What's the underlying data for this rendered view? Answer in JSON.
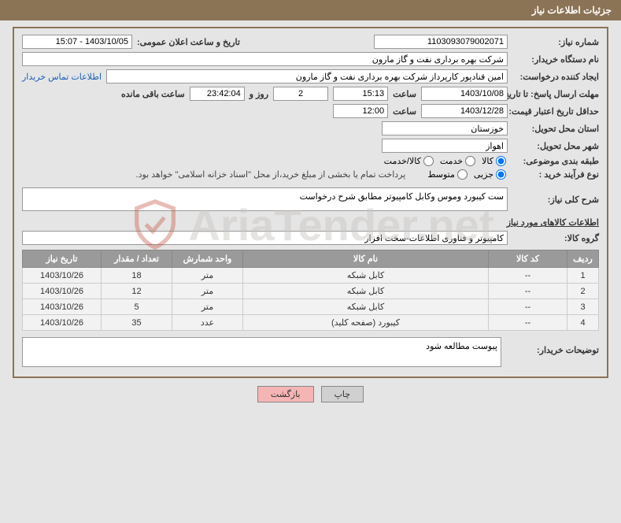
{
  "header": {
    "title": "جزئیات اطلاعات نیاز"
  },
  "fields": {
    "need_number_label": "شماره نیاز:",
    "need_number": "1103093079002071",
    "announce_label": "تاریخ و ساعت اعلان عمومی:",
    "announce_value": "1403/10/05 - 15:07",
    "buyer_org_label": "نام دستگاه خریدار:",
    "buyer_org": "شرکت بهره برداری نفت و گاز مارون",
    "requester_label": "ایجاد کننده درخواست:",
    "requester": "امین قنادپور کارپرداز شرکت بهره برداری نفت و گاز مارون",
    "buyer_contact_link": "اطلاعات تماس خریدار",
    "reply_deadline_label": "مهلت ارسال پاسخ: تا تاریخ:",
    "reply_date": "1403/10/08",
    "time_label": "ساعت",
    "reply_time": "15:13",
    "days_count": "2",
    "days_and": "روز و",
    "countdown": "23:42:04",
    "remaining_label": "ساعت باقی مانده",
    "price_valid_label": "حداقل تاریخ اعتبار قیمت: تا تاریخ:",
    "price_valid_date": "1403/12/28",
    "price_valid_time": "12:00",
    "province_label": "استان محل تحویل:",
    "province": "خوزستان",
    "city_label": "شهر محل تحویل:",
    "city": "اهواز",
    "category_label": "طبقه بندی موضوعی:",
    "radio_goods": "کالا",
    "radio_service": "خدمت",
    "radio_goods_service": "کالا/خدمت",
    "process_label": "نوع فرآیند خرید :",
    "radio_partial": "جزیی",
    "radio_medium": "متوسط",
    "payment_note": "پرداخت تمام یا بخشی از مبلغ خرید،از محل \"اسناد خزانه اسلامی\" خواهد بود.",
    "desc_label": "شرح کلی نیاز:",
    "desc_value": "ست کیبورد وموس وکابل کامپیوتر مطابق شرح درخواست",
    "goods_info_title": "اطلاعات کالاهای مورد نیاز",
    "goods_group_label": "گروه کالا:",
    "goods_group": "کامپیوتر و فناوری اطلاعات-سخت افزار",
    "buyer_notes_label": "توضیحات خریدار:",
    "buyer_notes": "پیوست مطالعه شود"
  },
  "table": {
    "headers": {
      "row": "ردیف",
      "code": "کد کالا",
      "name": "نام کالا",
      "unit": "واحد شمارش",
      "qty": "تعداد / مقدار",
      "need_date": "تاریخ نیاز"
    },
    "rows": [
      {
        "n": "1",
        "code": "--",
        "name": "کابل شبکه",
        "unit": "متر",
        "qty": "18",
        "date": "1403/10/26"
      },
      {
        "n": "2",
        "code": "--",
        "name": "کابل شبکه",
        "unit": "متر",
        "qty": "12",
        "date": "1403/10/26"
      },
      {
        "n": "3",
        "code": "--",
        "name": "کابل شبکه",
        "unit": "متر",
        "qty": "5",
        "date": "1403/10/26"
      },
      {
        "n": "4",
        "code": "--",
        "name": "کیبورد (صفحه کلید)",
        "unit": "عدد",
        "qty": "35",
        "date": "1403/10/26"
      }
    ]
  },
  "buttons": {
    "print": "چاپ",
    "back": "بازگشت"
  },
  "watermark": {
    "text": "AriaTender.net"
  },
  "colors": {
    "header_bg": "#8b7355",
    "panel_border": "#8b7355",
    "page_bg": "#e5e5e5",
    "th_bg": "#9a9a9a",
    "td_bg": "#f2f2f2",
    "link": "#1a5fb4",
    "btn_back_bg": "#f5b5b5"
  }
}
